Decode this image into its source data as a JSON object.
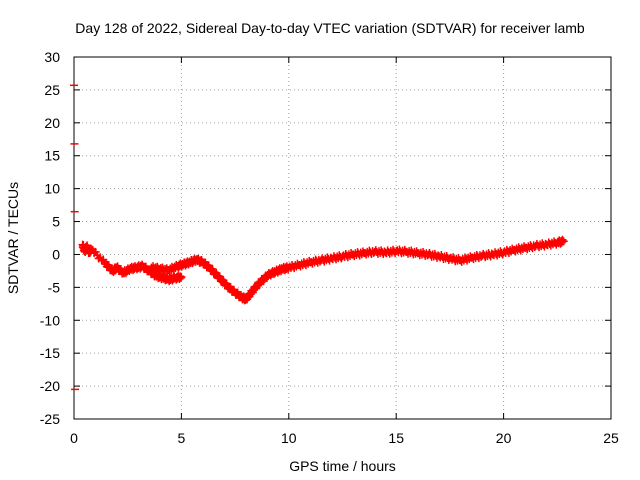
{
  "chart_data": {
    "type": "scatter",
    "title": "Day 128 of 2022, Sidereal Day-to-day VTEC variation (SDTVAR) for receiver lamb",
    "xlabel": "GPS time / hours",
    "ylabel": "SDTVAR / TECUs",
    "xlim": [
      0,
      25
    ],
    "ylim": [
      -25,
      30
    ],
    "xticks": [
      0,
      5,
      10,
      15,
      20,
      25
    ],
    "yticks": [
      -25,
      -20,
      -15,
      -10,
      -5,
      0,
      5,
      10,
      15,
      20,
      25,
      30
    ],
    "grid": true,
    "series_color": "#ff0000",
    "grid_color": "#a0a0a0",
    "series": [
      {
        "name": "SDTVAR",
        "marker": "plus",
        "x": [
          0.0,
          0.02,
          0.03,
          0.05,
          0.4,
          0.5,
          0.6,
          0.7,
          0.8,
          1.5,
          1.8,
          2.0,
          2.3,
          2.6,
          2.9,
          3.2,
          3.5,
          3.8,
          4.1,
          4.4,
          4.7,
          5.0,
          3.6,
          4.0,
          4.4,
          4.8,
          5.1,
          5.4,
          5.7,
          6.0,
          6.3,
          6.6,
          6.9,
          7.2,
          7.5,
          7.8,
          8.0,
          8.2,
          8.5,
          8.8,
          9.1,
          9.4,
          9.7,
          10.0,
          10.5,
          11.0,
          11.5,
          12.0,
          12.5,
          13.0,
          13.5,
          14.0,
          14.5,
          15.0,
          15.5,
          16.0,
          16.5,
          17.0,
          17.5,
          18.0,
          18.5,
          19.0,
          19.5,
          20.0,
          20.5,
          21.0,
          21.5,
          22.0,
          22.5,
          22.8
        ],
        "y": [
          25.7,
          16.8,
          6.5,
          -20.5,
          1.5,
          0.5,
          1.2,
          0.3,
          0.8,
          -1.5,
          -2.5,
          -2.0,
          -2.8,
          -2.2,
          -2.0,
          -1.8,
          -2.5,
          -3.2,
          -3.5,
          -3.8,
          -3.6,
          -3.4,
          -2.0,
          -2.2,
          -2.4,
          -1.8,
          -1.5,
          -1.2,
          -0.8,
          -1.2,
          -2.0,
          -3.0,
          -4.0,
          -5.0,
          -5.8,
          -6.5,
          -6.8,
          -6.0,
          -4.8,
          -3.8,
          -3.0,
          -2.6,
          -2.2,
          -2.0,
          -1.6,
          -1.2,
          -0.9,
          -0.6,
          -0.3,
          0.0,
          0.2,
          0.4,
          0.3,
          0.5,
          0.4,
          0.2,
          0.0,
          -0.3,
          -0.6,
          -0.9,
          -0.5,
          -0.2,
          0.0,
          0.3,
          0.7,
          1.0,
          1.3,
          1.5,
          1.8,
          2.0
        ]
      }
    ]
  }
}
